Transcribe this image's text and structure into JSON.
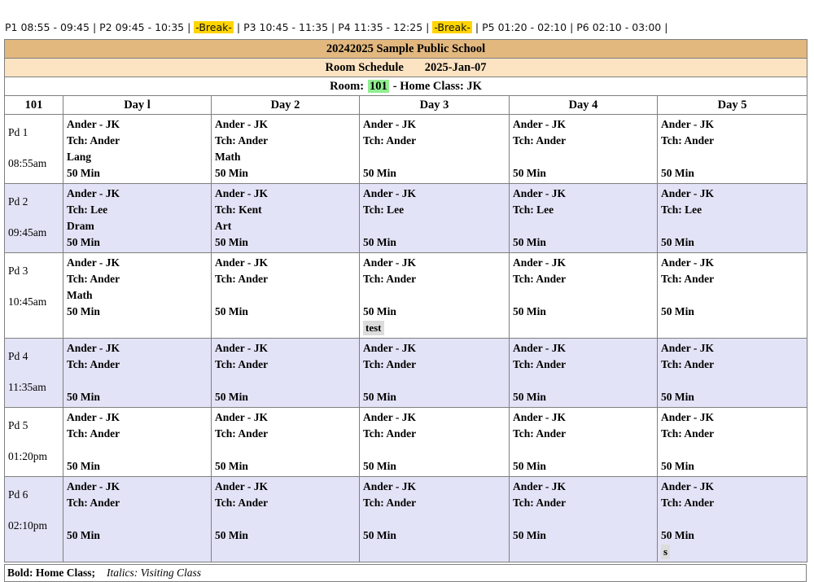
{
  "periods_bar": {
    "segments": [
      {
        "text": "P1 08:55 - 09:45",
        "highlight": false
      },
      {
        "text": "P2 09:45 - 10:35",
        "highlight": false
      },
      {
        "text": "-Break-",
        "highlight": true
      },
      {
        "text": "P3 10:45 - 11:35",
        "highlight": false
      },
      {
        "text": "P4 11:35 - 12:25",
        "highlight": false
      },
      {
        "text": "-Break-",
        "highlight": true
      },
      {
        "text": "P5 01:20 - 02:10",
        "highlight": false
      },
      {
        "text": "P6 02:10 - 03:00",
        "highlight": false
      }
    ],
    "separator": "|",
    "highlight_color": "#ffd400"
  },
  "header": {
    "school_title": "20242025 Sample Public School",
    "schedule_label": "Room Schedule",
    "date": "2025-Jan-07",
    "room_prefix": "Room:",
    "room_number": "101",
    "room_suffix": "- Home Class: JK",
    "title_bg": "#e2b87f",
    "subtitle_bg": "#fce3c2",
    "room_highlight": "#90ee90"
  },
  "table": {
    "corner_label": "101",
    "day_headers": [
      "Day l",
      "Day 2",
      "Day 3",
      "Day 4",
      "Day 5"
    ],
    "row_alt_color": "#e3e3f7",
    "rows": [
      {
        "period": "Pd 1",
        "time": "08:55am",
        "cells": [
          {
            "class_line": "Ander - JK",
            "teacher": "Tch: Ander",
            "subject": "Lang",
            "duration": "50 Min",
            "note": ""
          },
          {
            "class_line": "Ander - JK",
            "teacher": "Tch: Ander",
            "subject": "Math",
            "duration": "50 Min",
            "note": ""
          },
          {
            "class_line": "Ander - JK",
            "teacher": "Tch: Ander",
            "subject": "",
            "duration": "50 Min",
            "note": ""
          },
          {
            "class_line": "Ander - JK",
            "teacher": "Tch: Ander",
            "subject": "",
            "duration": "50 Min",
            "note": ""
          },
          {
            "class_line": "Ander - JK",
            "teacher": "Tch: Ander",
            "subject": "",
            "duration": "50 Min",
            "note": ""
          }
        ]
      },
      {
        "period": "Pd 2",
        "time": "09:45am",
        "cells": [
          {
            "class_line": "Ander - JK",
            "teacher": "Tch: Lee",
            "subject": "Dram",
            "duration": "50 Min",
            "note": ""
          },
          {
            "class_line": "Ander - JK",
            "teacher": "Tch: Kent",
            "subject": "Art",
            "duration": "50 Min",
            "note": ""
          },
          {
            "class_line": "Ander - JK",
            "teacher": "Tch: Lee",
            "subject": "",
            "duration": "50 Min",
            "note": ""
          },
          {
            "class_line": "Ander - JK",
            "teacher": "Tch: Lee",
            "subject": "",
            "duration": "50 Min",
            "note": ""
          },
          {
            "class_line": "Ander - JK",
            "teacher": "Tch: Lee",
            "subject": "",
            "duration": "50 Min",
            "note": ""
          }
        ]
      },
      {
        "period": "Pd 3",
        "time": "10:45am",
        "cells": [
          {
            "class_line": "Ander - JK",
            "teacher": "Tch: Ander",
            "subject": "Math",
            "duration": "50 Min",
            "note": ""
          },
          {
            "class_line": "Ander - JK",
            "teacher": "Tch: Ander",
            "subject": "",
            "duration": "50 Min",
            "note": ""
          },
          {
            "class_line": "Ander - JK",
            "teacher": "Tch: Ander",
            "subject": "",
            "duration": "50 Min",
            "note": "test"
          },
          {
            "class_line": "Ander - JK",
            "teacher": "Tch: Ander",
            "subject": "",
            "duration": "50 Min",
            "note": ""
          },
          {
            "class_line": "Ander - JK",
            "teacher": "Tch: Ander",
            "subject": "",
            "duration": "50 Min",
            "note": ""
          }
        ]
      },
      {
        "period": "Pd 4",
        "time": "11:35am",
        "cells": [
          {
            "class_line": "Ander - JK",
            "teacher": "Tch: Ander",
            "subject": "",
            "duration": "50 Min",
            "note": ""
          },
          {
            "class_line": "Ander - JK",
            "teacher": "Tch: Ander",
            "subject": "",
            "duration": "50 Min",
            "note": ""
          },
          {
            "class_line": "Ander - JK",
            "teacher": "Tch: Ander",
            "subject": "",
            "duration": "50 Min",
            "note": ""
          },
          {
            "class_line": "Ander - JK",
            "teacher": "Tch: Ander",
            "subject": "",
            "duration": "50 Min",
            "note": ""
          },
          {
            "class_line": "Ander - JK",
            "teacher": "Tch: Ander",
            "subject": "",
            "duration": "50 Min",
            "note": ""
          }
        ]
      },
      {
        "period": "Pd 5",
        "time": "01:20pm",
        "cells": [
          {
            "class_line": "Ander - JK",
            "teacher": "Tch: Ander",
            "subject": "",
            "duration": "50 Min",
            "note": ""
          },
          {
            "class_line": "Ander - JK",
            "teacher": "Tch: Ander",
            "subject": "",
            "duration": "50 Min",
            "note": ""
          },
          {
            "class_line": "Ander - JK",
            "teacher": "Tch: Ander",
            "subject": "",
            "duration": "50 Min",
            "note": ""
          },
          {
            "class_line": "Ander - JK",
            "teacher": "Tch: Ander",
            "subject": "",
            "duration": "50 Min",
            "note": ""
          },
          {
            "class_line": "Ander - JK",
            "teacher": "Tch: Ander",
            "subject": "",
            "duration": "50 Min",
            "note": ""
          }
        ]
      },
      {
        "period": "Pd 6",
        "time": "02:10pm",
        "cells": [
          {
            "class_line": "Ander - JK",
            "teacher": "Tch: Ander",
            "subject": "",
            "duration": "50 Min",
            "note": ""
          },
          {
            "class_line": "Ander - JK",
            "teacher": "Tch: Ander",
            "subject": "",
            "duration": "50 Min",
            "note": ""
          },
          {
            "class_line": "Ander - JK",
            "teacher": "Tch: Ander",
            "subject": "",
            "duration": "50 Min",
            "note": ""
          },
          {
            "class_line": "Ander - JK",
            "teacher": "Tch: Ander",
            "subject": "",
            "duration": "50 Min",
            "note": ""
          },
          {
            "class_line": "Ander - JK",
            "teacher": "Tch: Ander",
            "subject": "",
            "duration": "50 Min",
            "note": "s"
          }
        ]
      }
    ]
  },
  "footer": {
    "bold_label": "Bold: Home Class;",
    "italic_label": "Italics: Visiting Class"
  }
}
